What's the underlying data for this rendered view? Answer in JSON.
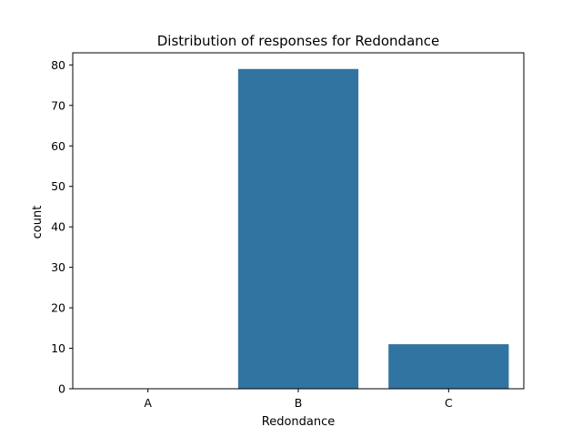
{
  "chart_data": {
    "type": "bar",
    "title": "Distribution of responses for Redondance",
    "xlabel": "Redondance",
    "ylabel": "count",
    "categories": [
      "A",
      "B",
      "C"
    ],
    "values": [
      0,
      79,
      11
    ],
    "ylim": [
      0,
      83
    ],
    "yticks": [
      0,
      10,
      20,
      30,
      40,
      50,
      60,
      70,
      80
    ],
    "bar_color": "#3274a1",
    "grid": false,
    "legend": "none"
  }
}
